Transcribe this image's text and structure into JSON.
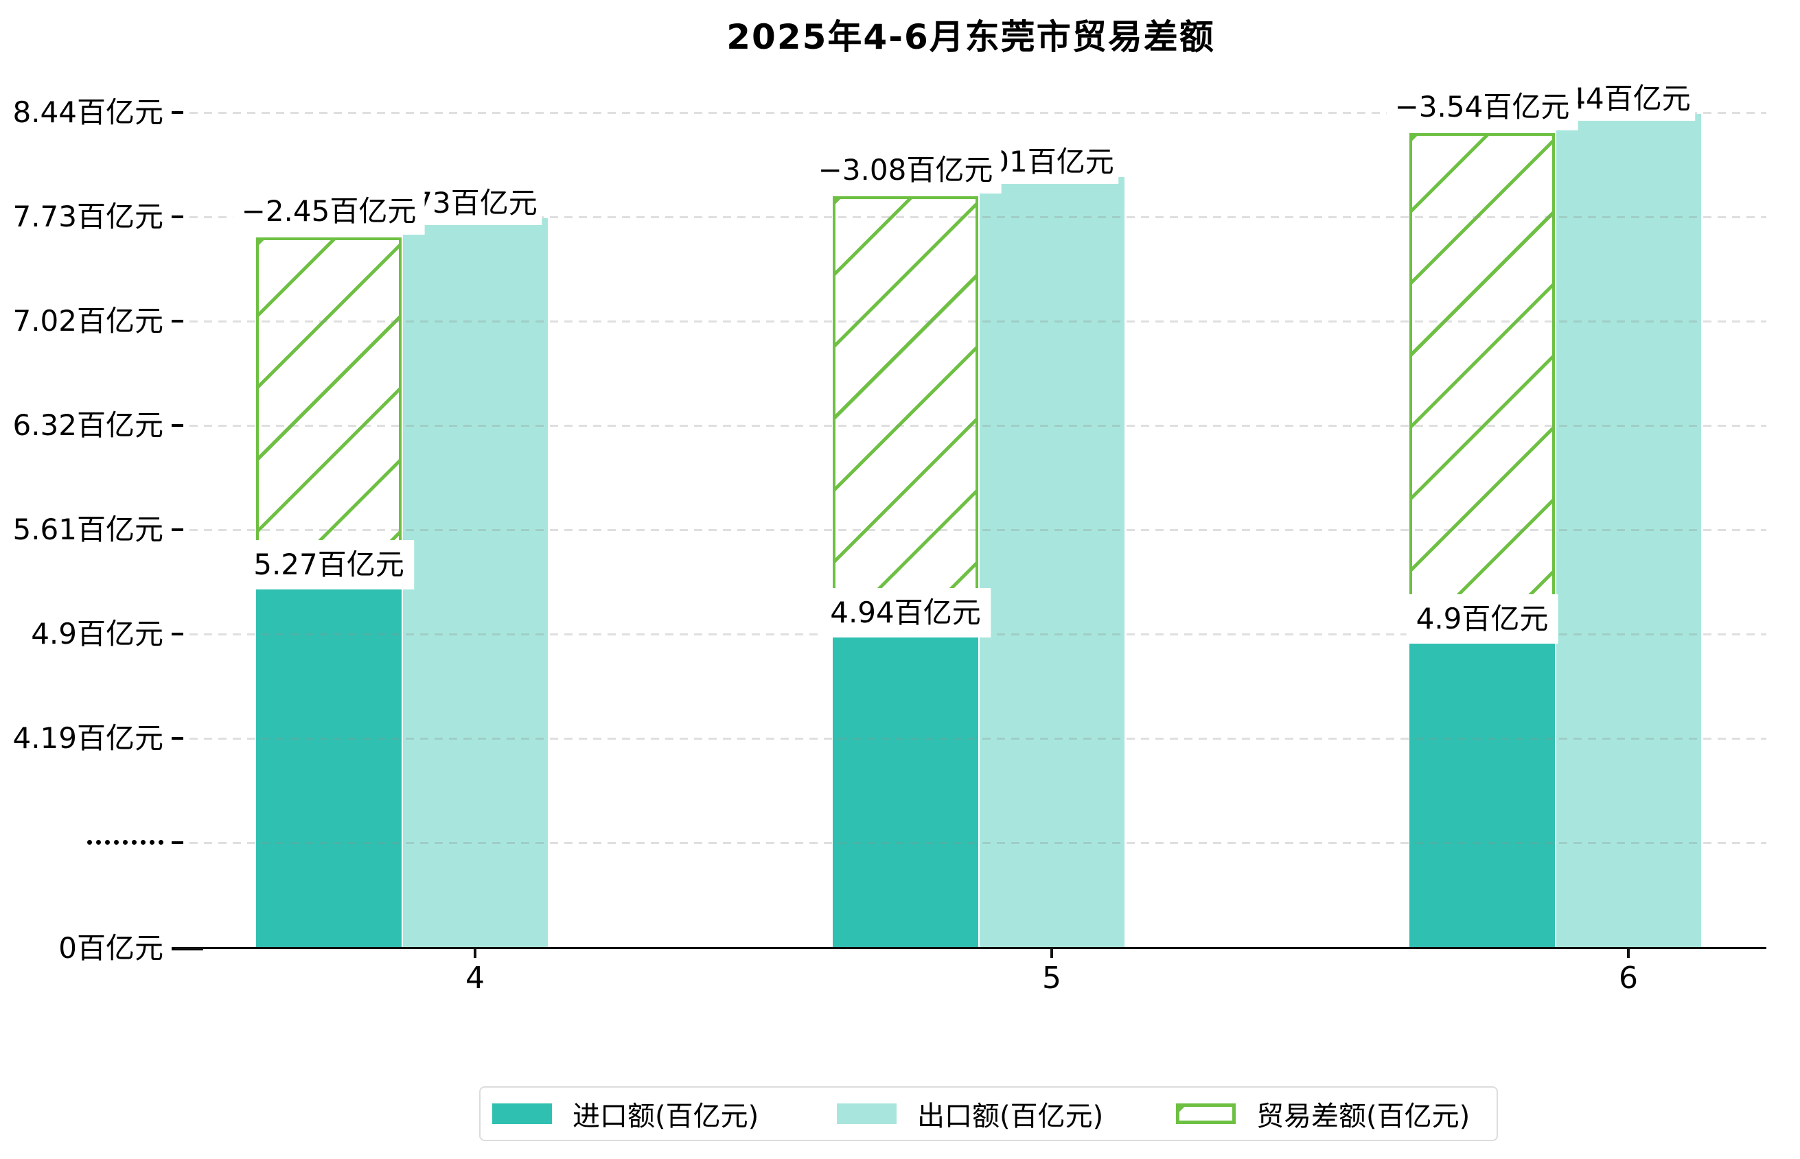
{
  "title": "2025年4-6月东莞市贸易差额",
  "y_axis": {
    "unit": "百亿元",
    "ticks": [
      {
        "label": "8.44百亿元",
        "value": 8.44,
        "type": "normal"
      },
      {
        "label": "7.73百亿元",
        "value": 7.73,
        "type": "normal"
      },
      {
        "label": "7.02百亿元",
        "value": 7.02,
        "type": "normal"
      },
      {
        "label": "6.32百亿元",
        "value": 6.32,
        "type": "normal"
      },
      {
        "label": "5.61百亿元",
        "value": 5.61,
        "type": "normal"
      },
      {
        "label": "4.9百亿元",
        "value": 4.9,
        "type": "normal"
      },
      {
        "label": "4.19百亿元",
        "value": 4.19,
        "type": "normal"
      },
      {
        "label": "·········",
        "type": "break"
      },
      {
        "label": "0百亿元",
        "value": 0,
        "type": "base"
      }
    ]
  },
  "x_axis": {
    "ticks": [
      "4",
      "5",
      "6"
    ]
  },
  "chart_data": {
    "type": "bar",
    "title": "2025年4-6月东莞市贸易差额",
    "categories": [
      "4",
      "5",
      "6"
    ],
    "xlabel": "",
    "ylabel": "百亿元",
    "axis_break": true,
    "y_tick_values": [
      8.44,
      7.73,
      7.02,
      6.32,
      5.61,
      4.9,
      4.19,
      0
    ],
    "legend_position": "bottom",
    "grid": "dashed",
    "series": [
      {
        "name": "进口额(百亿元)",
        "role": "import",
        "style": "solid",
        "color": "#30c0b1",
        "values": [
          5.27,
          4.94,
          4.9
        ],
        "labels": [
          "5.27百亿元",
          "4.94百亿元",
          "4.9百亿元"
        ]
      },
      {
        "name": "出口额(百亿元)",
        "role": "export",
        "style": "solid",
        "color": "#a8e6dd",
        "values": [
          7.73,
          8.01,
          8.44
        ],
        "labels": [
          "7.73百亿元",
          "8.01百亿元",
          "8.44百亿元"
        ]
      },
      {
        "name": "贸易差额(百亿元)",
        "role": "balance",
        "style": "hatched",
        "color": "#6ec043",
        "values": [
          -2.45,
          -3.08,
          -3.54
        ],
        "labels": [
          "−2.45百亿元",
          "−3.08百亿元",
          "−3.54百亿元"
        ]
      }
    ]
  },
  "legend": {
    "items": [
      {
        "label": "进口额(百亿元)",
        "swatch": "solid-teal"
      },
      {
        "label": "出口额(百亿元)",
        "swatch": "solid-light-teal"
      },
      {
        "label": "贸易差额(百亿元)",
        "swatch": "hatched-green"
      }
    ]
  },
  "colors": {
    "import": "#30c0b1",
    "export": "#a8e6dd",
    "balance": "#6ec043",
    "axis": "#111111",
    "grid": "#e3e3e3",
    "legend_border": "#dcdcdc",
    "background": "#ffffff",
    "text": "#000000"
  }
}
